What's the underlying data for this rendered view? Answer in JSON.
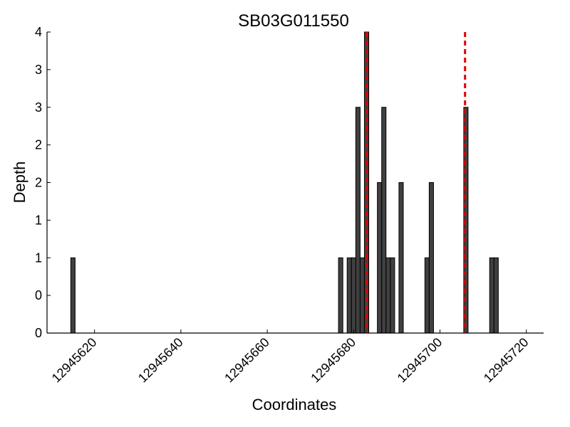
{
  "chart_data": {
    "type": "bar",
    "title": "SB03G011550",
    "xlabel": "Coordinates",
    "ylabel": "Depth",
    "xlim": [
      12945609,
      12945724
    ],
    "ylim": [
      0,
      4
    ],
    "x_ticks": [
      12945620,
      12945640,
      12945660,
      12945680,
      12945700,
      12945720
    ],
    "y_tick_labels": [
      "0",
      "0",
      "1",
      "1",
      "2",
      "2",
      "3",
      "3",
      "4"
    ],
    "bar_width": 1,
    "bar_color": "#404040",
    "bars": [
      {
        "x": 12945615,
        "value": 1
      },
      {
        "x": 12945677,
        "value": 1
      },
      {
        "x": 12945679,
        "value": 1
      },
      {
        "x": 12945680,
        "value": 1
      },
      {
        "x": 12945681,
        "value": 3
      },
      {
        "x": 12945682,
        "value": 1
      },
      {
        "x": 12945683,
        "value": 4
      },
      {
        "x": 12945686,
        "value": 2
      },
      {
        "x": 12945687,
        "value": 3
      },
      {
        "x": 12945688,
        "value": 1
      },
      {
        "x": 12945689,
        "value": 1
      },
      {
        "x": 12945691,
        "value": 2
      },
      {
        "x": 12945697,
        "value": 1
      },
      {
        "x": 12945698,
        "value": 2
      },
      {
        "x": 12945706,
        "value": 3
      },
      {
        "x": 12945712,
        "value": 1
      },
      {
        "x": 12945713,
        "value": 1
      }
    ],
    "markers": [
      12945683.1,
      12945705.8
    ],
    "marker_color": "#e00000"
  }
}
